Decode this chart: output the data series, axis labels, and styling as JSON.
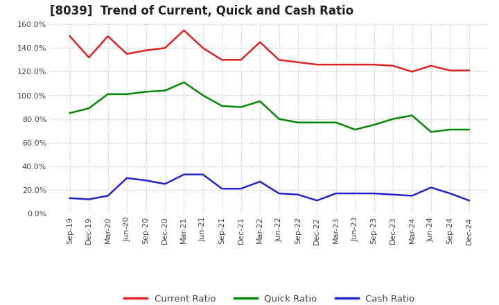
{
  "title": "[8039]  Trend of Current, Quick and Cash Ratio",
  "labels": [
    "Sep-19",
    "Dec-19",
    "Mar-20",
    "Jun-20",
    "Sep-20",
    "Dec-20",
    "Mar-21",
    "Jun-21",
    "Sep-21",
    "Dec-21",
    "Mar-22",
    "Jun-22",
    "Sep-22",
    "Dec-22",
    "Mar-23",
    "Jun-23",
    "Sep-23",
    "Dec-23",
    "Mar-24",
    "Jun-24",
    "Sep-24",
    "Dec-24"
  ],
  "current_ratio": [
    150.0,
    132.0,
    150.0,
    135.0,
    138.0,
    140.0,
    155.0,
    140.0,
    130.0,
    130.0,
    145.0,
    130.0,
    128.0,
    126.0,
    126.0,
    126.0,
    126.0,
    125.0,
    120.0,
    125.0,
    121.0,
    121.0
  ],
  "quick_ratio": [
    85.0,
    89.0,
    101.0,
    101.0,
    103.0,
    104.0,
    111.0,
    100.0,
    91.0,
    90.0,
    95.0,
    80.0,
    77.0,
    77.0,
    77.0,
    71.0,
    75.0,
    80.0,
    83.0,
    69.0,
    71.0,
    71.0
  ],
  "cash_ratio": [
    13.0,
    12.0,
    15.0,
    30.0,
    28.0,
    25.0,
    33.0,
    33.0,
    21.0,
    21.0,
    27.0,
    17.0,
    16.0,
    11.0,
    17.0,
    17.0,
    17.0,
    16.0,
    15.0,
    22.0,
    17.0,
    11.0
  ],
  "current_color": "#dd2222",
  "quick_color": "#008800",
  "cash_color": "#2222cc",
  "ylim": [
    0.0,
    160.0
  ],
  "yticks": [
    0.0,
    20.0,
    40.0,
    60.0,
    80.0,
    100.0,
    120.0,
    140.0,
    160.0
  ],
  "legend_labels": [
    "Current Ratio",
    "Quick Ratio",
    "Cash Ratio"
  ],
  "background_color": "#ffffff",
  "plot_bg_color": "#ffffff",
  "grid_color": "#bbbbbb",
  "title_fontsize": 12,
  "axis_fontsize": 8,
  "legend_fontsize": 9.5,
  "line_width": 1.8
}
